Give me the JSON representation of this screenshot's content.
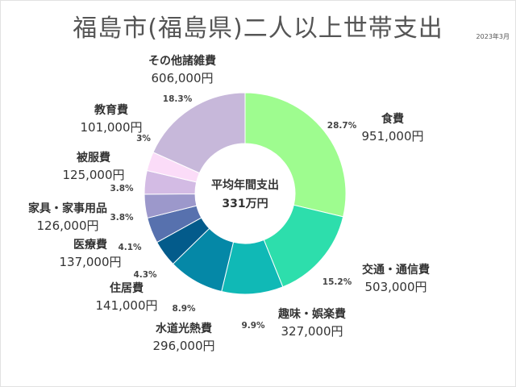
{
  "title": "福島市(福島県)二人以上世帯支出",
  "date": "2023年3月",
  "center": {
    "line1": "平均年間支出",
    "line2": "331万円"
  },
  "chart_data": {
    "type": "pie",
    "donut": true,
    "title": "福島市(福島県)二人以上世帯支出",
    "slices": [
      {
        "name": "食費",
        "amount": "951,000円",
        "value": 951000,
        "percent_label": "28.7%",
        "color": "#9efc8f"
      },
      {
        "name": "交通・通信費",
        "amount": "503,000円",
        "value": 503000,
        "percent_label": "15.2%",
        "color": "#2ddeac"
      },
      {
        "name": "趣味・娯楽費",
        "amount": "327,000円",
        "value": 327000,
        "percent_label": "9.9%",
        "color": "#10b9b6"
      },
      {
        "name": "水道光熱費",
        "amount": "296,000円",
        "value": 296000,
        "percent_label": "8.9%",
        "color": "#0588a7"
      },
      {
        "name": "住居費",
        "amount": "141,000円",
        "value": 141000,
        "percent_label": "4.3%",
        "color": "#035b8b"
      },
      {
        "name": "医療費",
        "amount": "137,000円",
        "value": 137000,
        "percent_label": "4.1%",
        "color": "#5771ae"
      },
      {
        "name": "家具・家事用品",
        "amount": "126,000円",
        "value": 126000,
        "percent_label": "3.8%",
        "color": "#9c98cb"
      },
      {
        "name": "被服費",
        "amount": "125,000円",
        "value": 125000,
        "percent_label": "3.8%",
        "color": "#d3bbe4"
      },
      {
        "name": "教育費",
        "amount": "101,000円",
        "value": 101000,
        "percent_label": "3%",
        "color": "#fbdcf8"
      },
      {
        "name": "その他諸雑費",
        "amount": "606,000円",
        "value": 606000,
        "percent_label": "18.3%",
        "color": "#c7b8da"
      }
    ]
  }
}
